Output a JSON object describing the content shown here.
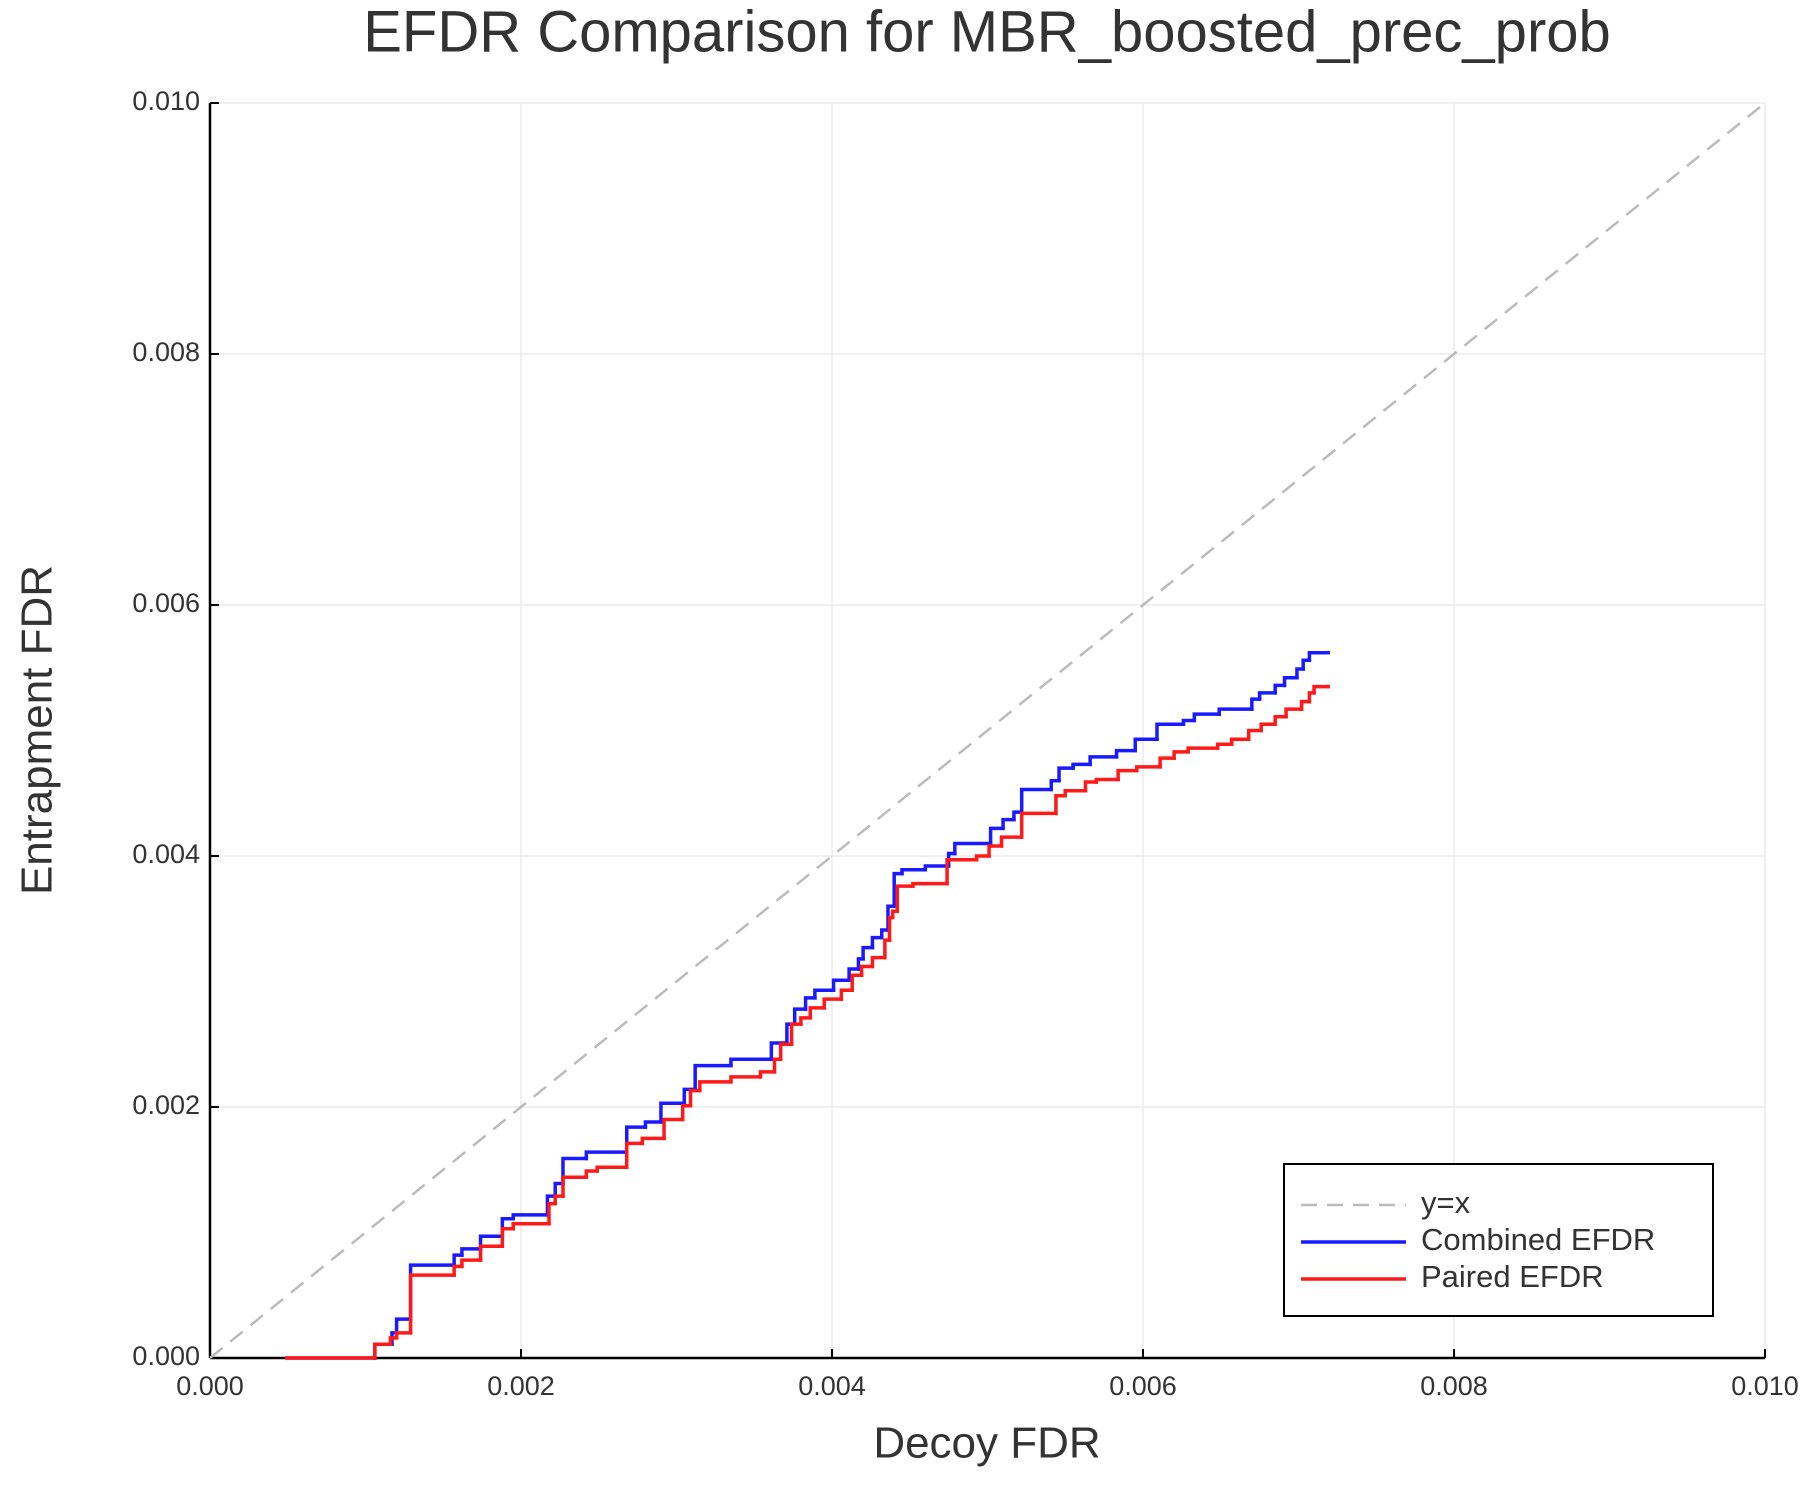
{
  "chart_data": {
    "type": "line",
    "title": "EFDR Comparison for MBR_boosted_prec_prob",
    "x_label": "Decoy FDR",
    "y_label": "Entrapment FDR",
    "xlim": [
      0,
      0.01
    ],
    "ylim": [
      0,
      0.01
    ],
    "xticks": [
      {
        "value": 0,
        "label": "0.000"
      },
      {
        "value": 0.002,
        "label": "0.002"
      },
      {
        "value": 0.004,
        "label": "0.004"
      },
      {
        "value": 0.006,
        "label": "0.006"
      },
      {
        "value": 0.008,
        "label": "0.008"
      },
      {
        "value": 0.01,
        "label": "0.010"
      }
    ],
    "yticks": [
      {
        "value": 0,
        "label": "0.000"
      },
      {
        "value": 0.002,
        "label": "0.002"
      },
      {
        "value": 0.004,
        "label": "0.004"
      },
      {
        "value": 0.006,
        "label": "0.006"
      },
      {
        "value": 0.008,
        "label": "0.008"
      },
      {
        "value": 0.01,
        "label": "0.010"
      }
    ],
    "grid": true,
    "legend": "lower right",
    "series": [
      {
        "name": "y=x",
        "color": "#bbbbbb",
        "dash": true,
        "step": false,
        "x": [
          0,
          0.01
        ],
        "values": [
          0,
          0.01
        ]
      },
      {
        "name": "Combined EFDR",
        "color": "#1a1aff",
        "dash": false,
        "step": true,
        "x": [
          0.000495,
          0.00106,
          0.00117,
          0.0012,
          0.00129,
          0.00157,
          0.00162,
          0.00174,
          0.00188,
          0.00195,
          0.00217,
          0.00222,
          0.00227,
          0.00242,
          0.00268,
          0.0028,
          0.0029,
          0.00305,
          0.00312,
          0.00335,
          0.00361,
          0.00371,
          0.00376,
          0.00383,
          0.00389,
          0.00401,
          0.00411,
          0.00417,
          0.0042,
          0.00426,
          0.00432,
          0.00436,
          0.0044,
          0.00445,
          0.0046,
          0.00475,
          0.00479,
          0.00502,
          0.0051,
          0.00517,
          0.00522,
          0.00541,
          0.00546,
          0.00555,
          0.00566,
          0.00583,
          0.00595,
          0.00609,
          0.00626,
          0.00633,
          0.00649,
          0.0067,
          0.00675,
          0.00685,
          0.00691,
          0.00699,
          0.00703,
          0.00707,
          0.00719
        ],
        "values": [
          0,
          0.00011,
          0.0002,
          0.00031,
          0.00074,
          0.00082,
          0.00087,
          0.00097,
          0.00111,
          0.00114,
          0.00129,
          0.00139,
          0.00159,
          0.00164,
          0.00184,
          0.00188,
          0.00203,
          0.00214,
          0.00233,
          0.00238,
          0.00251,
          0.00266,
          0.00278,
          0.00287,
          0.00293,
          0.00301,
          0.0031,
          0.00318,
          0.00327,
          0.00335,
          0.00341,
          0.0036,
          0.00386,
          0.00389,
          0.00392,
          0.00402,
          0.0041,
          0.00422,
          0.00429,
          0.00435,
          0.00453,
          0.0046,
          0.0047,
          0.00473,
          0.00479,
          0.00484,
          0.00493,
          0.00505,
          0.00508,
          0.00513,
          0.00517,
          0.00525,
          0.0053,
          0.00536,
          0.00542,
          0.00549,
          0.00556,
          0.00562,
          0.00562
        ]
      },
      {
        "name": "Paired EFDR",
        "color": "#ff1a1a",
        "dash": false,
        "step": true,
        "x": [
          0.000495,
          0.00106,
          0.00116,
          0.0012,
          0.00129,
          0.00157,
          0.00162,
          0.00174,
          0.00188,
          0.00195,
          0.00218,
          0.00222,
          0.00227,
          0.00242,
          0.00249,
          0.00268,
          0.00278,
          0.00292,
          0.00304,
          0.00309,
          0.00315,
          0.00335,
          0.00354,
          0.00363,
          0.00367,
          0.00374,
          0.0038,
          0.00386,
          0.00395,
          0.00406,
          0.00413,
          0.00419,
          0.00426,
          0.00434,
          0.00437,
          0.00439,
          0.00442,
          0.00452,
          0.00474,
          0.00493,
          0.00501,
          0.00509,
          0.00522,
          0.00544,
          0.0055,
          0.00563,
          0.0057,
          0.00584,
          0.00596,
          0.00611,
          0.0062,
          0.00629,
          0.00648,
          0.00657,
          0.00668,
          0.00676,
          0.00685,
          0.00692,
          0.00702,
          0.00707,
          0.0071,
          0.00719
        ],
        "values": [
          0,
          0.00011,
          0.00016,
          0.0002,
          0.00066,
          0.00073,
          0.00078,
          0.00089,
          0.00103,
          0.00107,
          0.00123,
          0.00129,
          0.00144,
          0.00149,
          0.00152,
          0.00171,
          0.00175,
          0.0019,
          0.00201,
          0.00213,
          0.0022,
          0.00224,
          0.00228,
          0.00238,
          0.0025,
          0.00266,
          0.00271,
          0.00279,
          0.00286,
          0.00293,
          0.00305,
          0.00312,
          0.00319,
          0.00333,
          0.00351,
          0.00356,
          0.00376,
          0.00378,
          0.00397,
          0.004,
          0.00408,
          0.00415,
          0.00434,
          0.00448,
          0.00452,
          0.00459,
          0.00461,
          0.00468,
          0.00471,
          0.00478,
          0.00483,
          0.00486,
          0.00489,
          0.00493,
          0.005,
          0.00505,
          0.00511,
          0.00517,
          0.00523,
          0.0053,
          0.00535,
          0.00535
        ]
      }
    ]
  }
}
